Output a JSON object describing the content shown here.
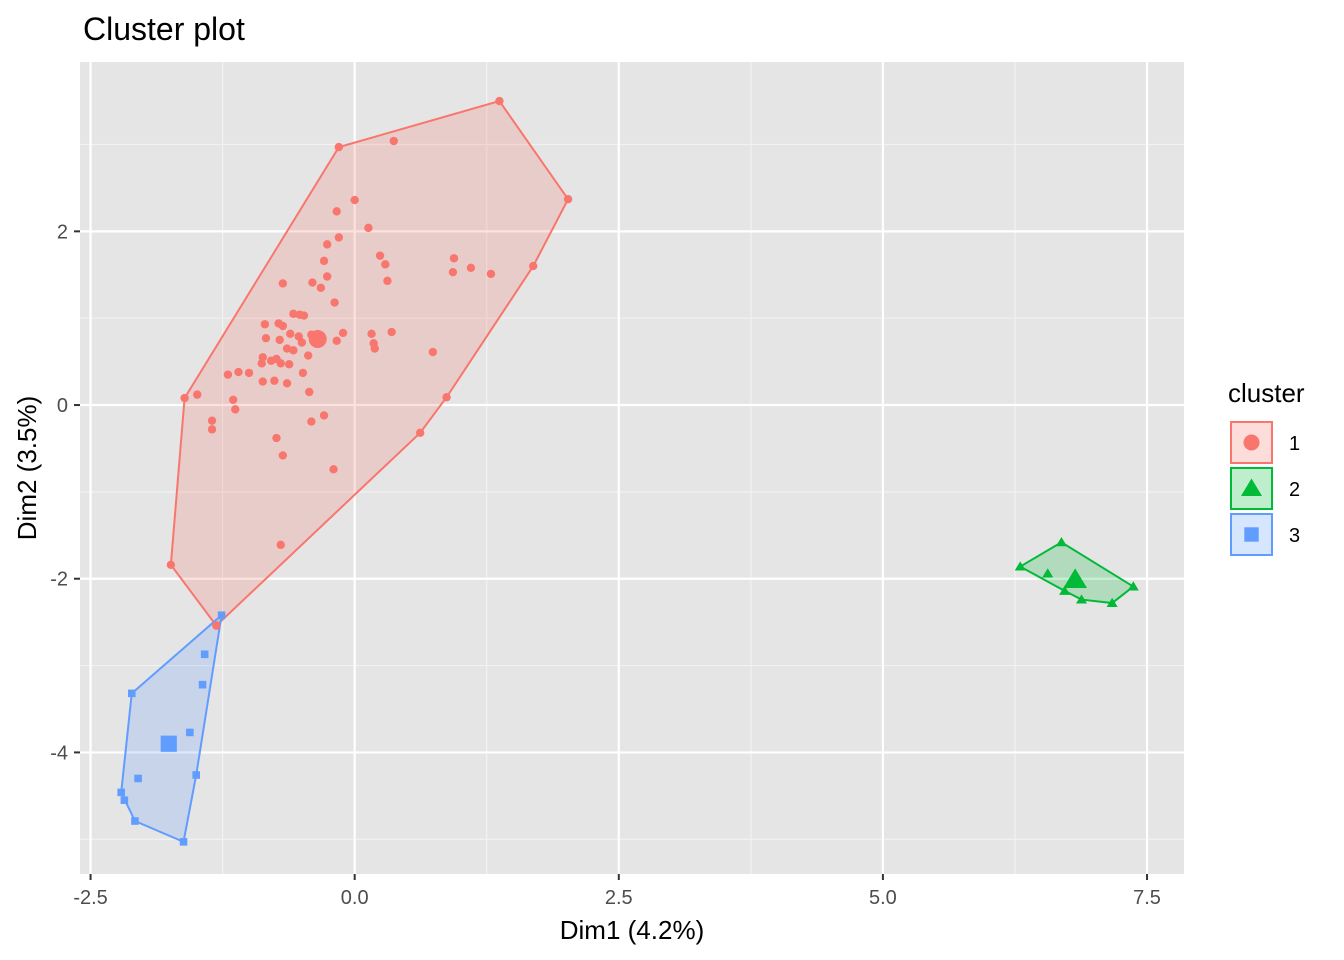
{
  "chart_data": {
    "type": "scatter",
    "title": "Cluster plot",
    "xlabel": "Dim1 (4.2%)",
    "ylabel": "Dim2 (3.5%)",
    "xlim": [
      -2.6,
      7.85
    ],
    "ylim": [
      -5.4,
      3.95
    ],
    "x_ticks": [
      -2.5,
      0.0,
      2.5,
      5.0,
      7.5
    ],
    "x_tick_labels": [
      "-2.5",
      "0.0",
      "2.5",
      "5.0",
      "7.5"
    ],
    "y_ticks": [
      -4,
      -2,
      0,
      2
    ],
    "y_tick_labels": [
      "-4",
      "-2",
      "0",
      "2"
    ],
    "grid": true,
    "panel_color": "#e5e5e5",
    "legend": {
      "title": "cluster",
      "position": "right",
      "entries": [
        {
          "label": "1",
          "color": "#f8766d",
          "shape": "circle"
        },
        {
          "label": "2",
          "color": "#00ba38",
          "shape": "triangle"
        },
        {
          "label": "3",
          "color": "#619cff",
          "shape": "square"
        }
      ]
    },
    "series": [
      {
        "name": "1",
        "color": "#f8766d",
        "shape": "circle",
        "center": [
          -0.35,
          0.76
        ],
        "hull": [
          [
            -0.15,
            2.97
          ],
          [
            1.37,
            3.5
          ],
          [
            2.02,
            2.37
          ],
          [
            1.69,
            1.6
          ],
          [
            0.87,
            0.09
          ],
          [
            0.62,
            -0.32
          ],
          [
            -1.31,
            -2.54
          ],
          [
            -1.74,
            -1.84
          ],
          [
            -1.61,
            0.08
          ]
        ],
        "points": [
          [
            -0.15,
            2.97
          ],
          [
            1.37,
            3.5
          ],
          [
            2.02,
            2.37
          ],
          [
            1.69,
            1.6
          ],
          [
            0.87,
            0.09
          ],
          [
            0.62,
            -0.32
          ],
          [
            -1.31,
            -2.54
          ],
          [
            -1.74,
            -1.84
          ],
          [
            -1.61,
            0.08
          ],
          [
            0.37,
            3.04
          ],
          [
            -0.17,
            2.23
          ],
          [
            0.0,
            2.36
          ],
          [
            -0.15,
            1.93
          ],
          [
            0.13,
            2.04
          ],
          [
            -0.26,
            1.85
          ],
          [
            0.24,
            1.72
          ],
          [
            0.94,
            1.69
          ],
          [
            0.29,
            1.62
          ],
          [
            1.1,
            1.58
          ],
          [
            0.93,
            1.53
          ],
          [
            1.29,
            1.51
          ],
          [
            -0.29,
            1.66
          ],
          [
            -0.26,
            1.48
          ],
          [
            -0.4,
            1.41
          ],
          [
            -0.32,
            1.35
          ],
          [
            -0.68,
            1.4
          ],
          [
            0.31,
            1.43
          ],
          [
            -0.19,
            1.18
          ],
          [
            -0.58,
            1.05
          ],
          [
            -0.52,
            1.04
          ],
          [
            -0.48,
            1.03
          ],
          [
            -0.85,
            0.93
          ],
          [
            -0.72,
            0.94
          ],
          [
            -0.68,
            0.91
          ],
          [
            -0.61,
            0.82
          ],
          [
            -0.41,
            0.81
          ],
          [
            -0.11,
            0.83
          ],
          [
            0.16,
            0.82
          ],
          [
            0.35,
            0.84
          ],
          [
            -0.84,
            0.77
          ],
          [
            -0.71,
            0.75
          ],
          [
            -0.53,
            0.79
          ],
          [
            -0.5,
            0.72
          ],
          [
            -0.17,
            0.74
          ],
          [
            0.18,
            0.71
          ],
          [
            0.19,
            0.65
          ],
          [
            0.74,
            0.61
          ],
          [
            -0.58,
            0.63
          ],
          [
            -0.64,
            0.65
          ],
          [
            -0.44,
            0.57
          ],
          [
            -0.87,
            0.55
          ],
          [
            -0.74,
            0.53
          ],
          [
            -0.79,
            0.51
          ],
          [
            -0.7,
            0.48
          ],
          [
            -0.62,
            0.47
          ],
          [
            -0.88,
            0.48
          ],
          [
            -1.0,
            0.37
          ],
          [
            -1.1,
            0.38
          ],
          [
            -1.2,
            0.35
          ],
          [
            -0.49,
            0.37
          ],
          [
            -0.87,
            0.27
          ],
          [
            -0.76,
            0.28
          ],
          [
            -0.64,
            0.25
          ],
          [
            -0.43,
            0.15
          ],
          [
            -1.15,
            0.06
          ],
          [
            -1.49,
            0.12
          ],
          [
            -1.13,
            -0.05
          ],
          [
            -1.35,
            -0.18
          ],
          [
            -1.35,
            -0.28
          ],
          [
            -0.29,
            -0.12
          ],
          [
            -0.41,
            -0.19
          ],
          [
            -0.74,
            -0.38
          ],
          [
            -0.68,
            -0.58
          ],
          [
            -0.2,
            -0.74
          ],
          [
            -0.7,
            -1.61
          ]
        ]
      },
      {
        "name": "2",
        "color": "#00ba38",
        "shape": "triangle",
        "center": [
          6.82,
          -2.01
        ],
        "hull": [
          [
            6.3,
            -1.86
          ],
          [
            6.69,
            -1.58
          ],
          [
            7.37,
            -2.09
          ],
          [
            7.17,
            -2.28
          ],
          [
            6.88,
            -2.24
          ],
          [
            6.72,
            -2.14
          ]
        ],
        "points": [
          [
            6.3,
            -1.86
          ],
          [
            6.69,
            -1.58
          ],
          [
            7.37,
            -2.09
          ],
          [
            7.17,
            -2.28
          ],
          [
            6.88,
            -2.24
          ],
          [
            6.72,
            -2.14
          ],
          [
            6.56,
            -1.94
          ]
        ]
      },
      {
        "name": "3",
        "color": "#619cff",
        "shape": "square",
        "center": [
          -1.76,
          -3.9
        ],
        "hull": [
          [
            -1.26,
            -2.42
          ],
          [
            -1.5,
            -4.26
          ],
          [
            -1.62,
            -5.03
          ],
          [
            -2.08,
            -4.79
          ],
          [
            -2.21,
            -4.46
          ],
          [
            -2.11,
            -3.32
          ]
        ],
        "points": [
          [
            -1.26,
            -2.42
          ],
          [
            -1.5,
            -4.26
          ],
          [
            -1.62,
            -5.03
          ],
          [
            -2.08,
            -4.79
          ],
          [
            -2.21,
            -4.46
          ],
          [
            -2.11,
            -3.32
          ],
          [
            -1.42,
            -2.87
          ],
          [
            -1.44,
            -3.22
          ],
          [
            -1.56,
            -3.77
          ],
          [
            -2.05,
            -4.3
          ],
          [
            -2.18,
            -4.55
          ]
        ]
      }
    ]
  }
}
